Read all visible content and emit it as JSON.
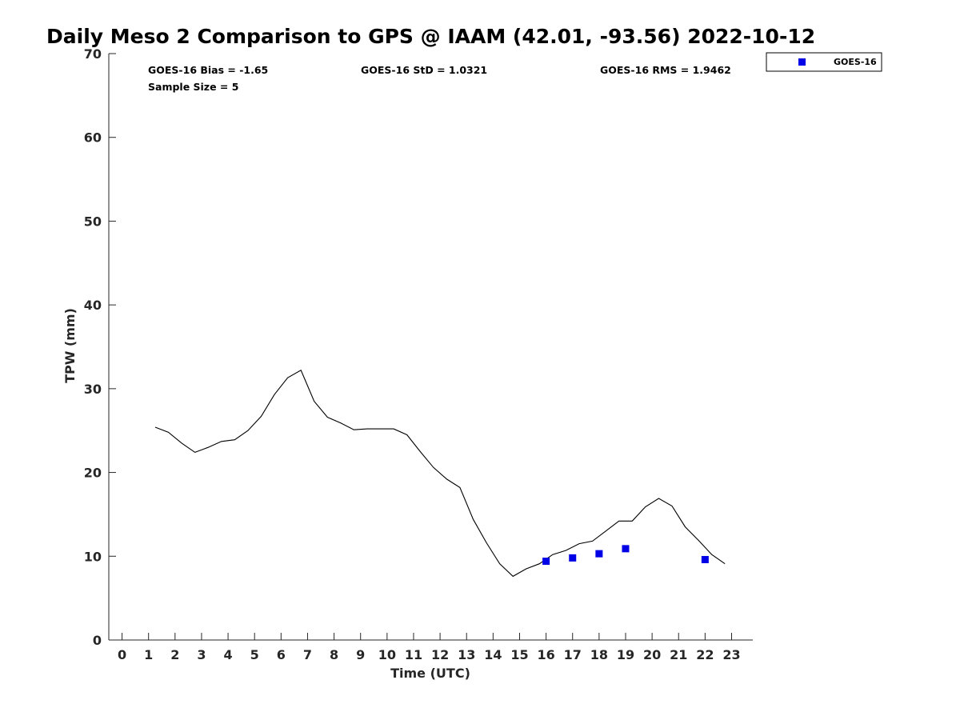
{
  "chart_data": {
    "type": "line",
    "title": "Daily Meso 2 Comparison to GPS @ IAAM (42.01, -93.56) 2022-10-12",
    "xlabel": "Time (UTC)",
    "ylabel": "TPW (mm)",
    "xlim": [
      -0.5,
      23.8
    ],
    "ylim": [
      0,
      70
    ],
    "x_ticks": [
      0,
      1,
      2,
      3,
      4,
      5,
      6,
      7,
      8,
      9,
      10,
      11,
      12,
      13,
      14,
      15,
      16,
      17,
      18,
      19,
      20,
      21,
      22,
      23
    ],
    "y_ticks": [
      0,
      10,
      20,
      30,
      40,
      50,
      60,
      70
    ],
    "grid": false,
    "legend_position": "top-right, outside plot",
    "stats": {
      "bias": "GOES-16 Bias = -1.65",
      "std": "GOES-16 StD = 1.0321",
      "rms": "GOES-16 RMS = 1.9462",
      "sample": "Sample Size = 5"
    },
    "series": [
      {
        "color": "#000000",
        "style": "line",
        "points": [
          [
            1.25,
            25.4
          ],
          [
            1.75,
            24.8
          ],
          [
            2.25,
            23.5
          ],
          [
            2.75,
            22.4
          ],
          [
            3.25,
            23.0
          ],
          [
            3.75,
            23.7
          ],
          [
            4.25,
            23.9
          ],
          [
            4.75,
            25.0
          ],
          [
            5.25,
            26.7
          ],
          [
            5.75,
            29.3
          ],
          [
            6.25,
            31.3
          ],
          [
            6.75,
            32.2
          ],
          [
            7.25,
            28.5
          ],
          [
            7.75,
            26.6
          ],
          [
            8.25,
            25.9
          ],
          [
            8.75,
            25.1
          ],
          [
            9.25,
            25.2
          ],
          [
            9.75,
            25.2
          ],
          [
            10.25,
            25.2
          ],
          [
            10.75,
            24.5
          ],
          [
            11.25,
            22.5
          ],
          [
            11.75,
            20.6
          ],
          [
            12.25,
            19.2
          ],
          [
            12.75,
            18.2
          ],
          [
            13.25,
            14.4
          ],
          [
            13.75,
            11.6
          ],
          [
            14.25,
            9.1
          ],
          [
            14.75,
            7.6
          ],
          [
            15.25,
            8.5
          ],
          [
            15.75,
            9.1
          ],
          [
            16.25,
            10.2
          ],
          [
            16.75,
            10.7
          ],
          [
            17.25,
            11.5
          ],
          [
            17.75,
            11.8
          ],
          [
            18.25,
            13.0
          ],
          [
            18.75,
            14.2
          ],
          [
            19.25,
            14.2
          ],
          [
            19.75,
            15.9
          ],
          [
            20.25,
            16.9
          ],
          [
            20.75,
            16.0
          ],
          [
            21.25,
            13.5
          ],
          [
            21.75,
            11.9
          ],
          [
            22.25,
            10.2
          ],
          [
            22.75,
            9.1
          ]
        ]
      },
      {
        "name": "GOES-16",
        "color": "#0000e6",
        "style": "square-markers",
        "points": [
          [
            16,
            9.4
          ],
          [
            17,
            9.8
          ],
          [
            18,
            10.3
          ],
          [
            19,
            10.9
          ],
          [
            22,
            9.6
          ]
        ]
      }
    ]
  }
}
